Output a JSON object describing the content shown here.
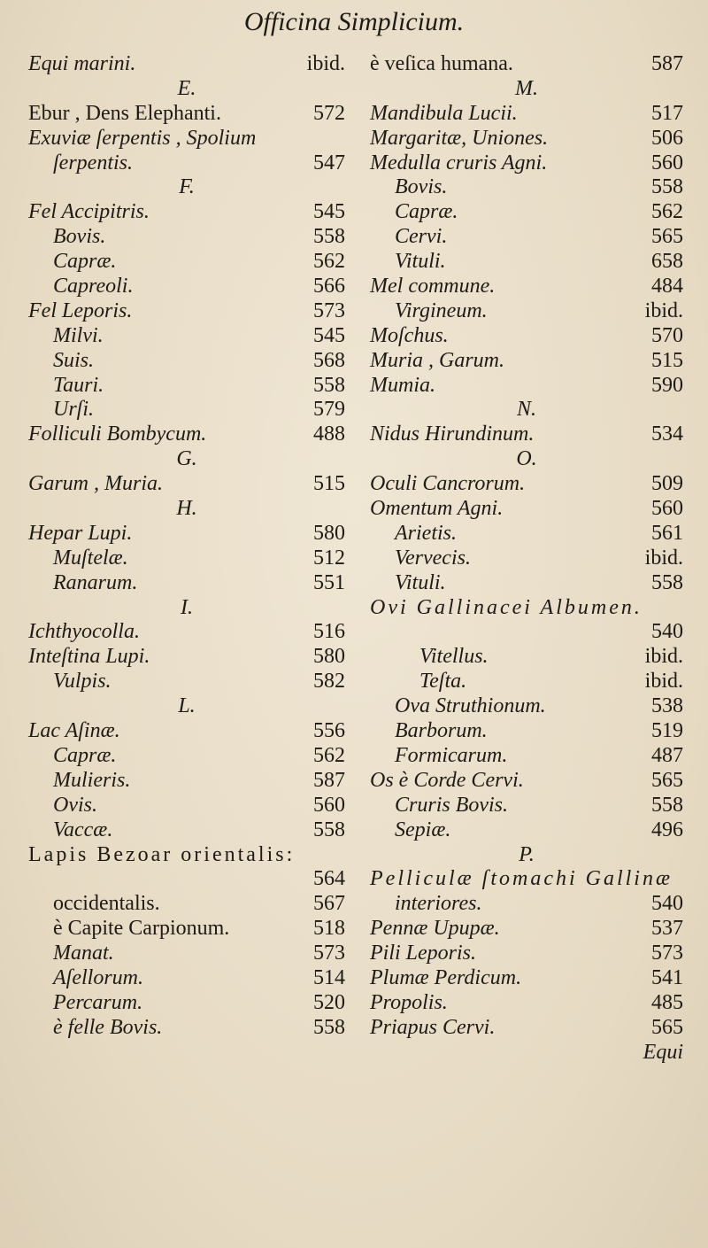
{
  "page": {
    "running_title": "Officina Simplicium.",
    "catchword": "Equi"
  },
  "left_column": [
    {
      "text": "Equi marini.",
      "page": "ibid."
    },
    {
      "text": "E.",
      "heading": true
    },
    {
      "text": "Ebur , Dens Elephanti.",
      "page": "572",
      "roman": true
    },
    {
      "text": "Exuviæ ſerpentis , Spolium"
    },
    {
      "text": "ſerpentis.",
      "page": "547",
      "level": 1
    },
    {
      "text": "F.",
      "heading": true
    },
    {
      "text": "Fel Accipitris.",
      "page": "545"
    },
    {
      "text": "Bovis.",
      "page": "558",
      "level": 1
    },
    {
      "text": "Capræ.",
      "page": "562",
      "level": 1
    },
    {
      "text": "Capreoli.",
      "page": "566",
      "level": 1
    },
    {
      "text": "Fel Leporis.",
      "page": "573"
    },
    {
      "text": "Milvi.",
      "page": "545",
      "level": 1
    },
    {
      "text": "Suis.",
      "page": "568",
      "level": 1
    },
    {
      "text": "Tauri.",
      "page": "558",
      "level": 1
    },
    {
      "text": "Urſi.",
      "page": "579",
      "level": 1
    },
    {
      "text": "Folliculi Bombycum.",
      "page": "488"
    },
    {
      "text": "G.",
      "heading": true
    },
    {
      "text": "Garum , Muria.",
      "page": "515"
    },
    {
      "text": "H.",
      "heading": true
    },
    {
      "text": "Hepar Lupi.",
      "page": "580"
    },
    {
      "text": "Muſtelæ.",
      "page": "512",
      "level": 1
    },
    {
      "text": "Ranarum.",
      "page": "551",
      "level": 1
    },
    {
      "text": "I.",
      "heading": true
    },
    {
      "text": "Ichthyocolla.",
      "page": "516"
    },
    {
      "text": "Inteſtina Lupi.",
      "page": "580"
    },
    {
      "text": "Vulpis.",
      "page": "582",
      "level": 1
    },
    {
      "text": "L.",
      "heading": true
    },
    {
      "text": "Lac Aſinæ.",
      "page": "556"
    },
    {
      "text": "Capræ.",
      "page": "562",
      "level": 1
    },
    {
      "text": "Mulieris.",
      "page": "587",
      "level": 1
    },
    {
      "text": "Ovis.",
      "page": "560",
      "level": 1
    },
    {
      "text": "Vaccæ.",
      "page": "558",
      "level": 1
    },
    {
      "text": "Lapis Bezoar orientalis:",
      "roman": true,
      "wide": true
    },
    {
      "text": "",
      "page": "564"
    },
    {
      "text": "occidentalis.",
      "page": "567",
      "level": 1,
      "roman": true
    },
    {
      "text": "è Capite Carpionum.",
      "page": "518",
      "level": 1,
      "roman": true
    },
    {
      "text": "Manat.",
      "page": "573",
      "level": 1
    },
    {
      "text": "Aſellorum.",
      "page": "514",
      "level": 1
    },
    {
      "text": "Percarum.",
      "page": "520",
      "level": 1
    },
    {
      "text": "è felle Bovis.",
      "page": "558",
      "level": 1
    }
  ],
  "right_column": [
    {
      "text": "è veſica humana.",
      "page": "587",
      "roman": true
    },
    {
      "text": "M.",
      "heading": true
    },
    {
      "text": "Mandibula Lucii.",
      "page": "517"
    },
    {
      "text": "Margaritæ, Uniones.",
      "page": "506"
    },
    {
      "text": "Medulla cruris Agni.",
      "page": "560"
    },
    {
      "text": "Bovis.",
      "page": "558",
      "level": 1
    },
    {
      "text": "Capræ.",
      "page": "562",
      "level": 1
    },
    {
      "text": "Cervi.",
      "page": "565",
      "level": 1
    },
    {
      "text": "Vituli.",
      "page": "658",
      "level": 1
    },
    {
      "text": "Mel commune.",
      "page": "484"
    },
    {
      "text": "Virgineum.",
      "page": "ibid.",
      "level": 1
    },
    {
      "text": "Moſchus.",
      "page": "570"
    },
    {
      "text": "Muria , Garum.",
      "page": "515"
    },
    {
      "text": "Mumia.",
      "page": "590"
    },
    {
      "text": "N.",
      "heading": true
    },
    {
      "text": "Nidus Hirundinum.",
      "page": "534"
    },
    {
      "text": "O.",
      "heading": true
    },
    {
      "text": "Oculi Cancrorum.",
      "page": "509"
    },
    {
      "text": "Omentum Agni.",
      "page": "560"
    },
    {
      "text": "Arietis.",
      "page": "561",
      "level": 1
    },
    {
      "text": "Vervecis.",
      "page": "ibid.",
      "level": 1
    },
    {
      "text": "Vituli.",
      "page": "558",
      "level": 1
    },
    {
      "text": "Ovi Gallinacei Albumen.",
      "wide": true
    },
    {
      "text": "",
      "page": "540"
    },
    {
      "text": "Vitellus.",
      "page": "ibid.",
      "level": 2
    },
    {
      "text": "Teſta.",
      "page": "ibid.",
      "level": 2
    },
    {
      "text": "Ova Struthionum.",
      "page": "538",
      "level": 1
    },
    {
      "text": "Barborum.",
      "page": "519",
      "level": 1
    },
    {
      "text": "Formicarum.",
      "page": "487",
      "level": 1
    },
    {
      "text": "Os è Corde Cervi.",
      "page": "565"
    },
    {
      "text": "Cruris Bovis.",
      "page": "558",
      "level": 1
    },
    {
      "text": "Sepiæ.",
      "page": "496",
      "level": 1
    },
    {
      "text": "P.",
      "heading": true
    },
    {
      "text": "Pelliculæ ſtomachi Gallinæ",
      "wide": true
    },
    {
      "text": "interiores.",
      "page": "540",
      "level": 1
    },
    {
      "text": "Pennæ Upupæ.",
      "page": "537"
    },
    {
      "text": "Pili Leporis.",
      "page": "573"
    },
    {
      "text": "Plumæ Perdicum.",
      "page": "541"
    },
    {
      "text": "Propolis.",
      "page": "485"
    },
    {
      "text": "Priapus Cervi.",
      "page": "565"
    },
    {
      "text": "",
      "page": "Equi",
      "catchword": true
    }
  ]
}
